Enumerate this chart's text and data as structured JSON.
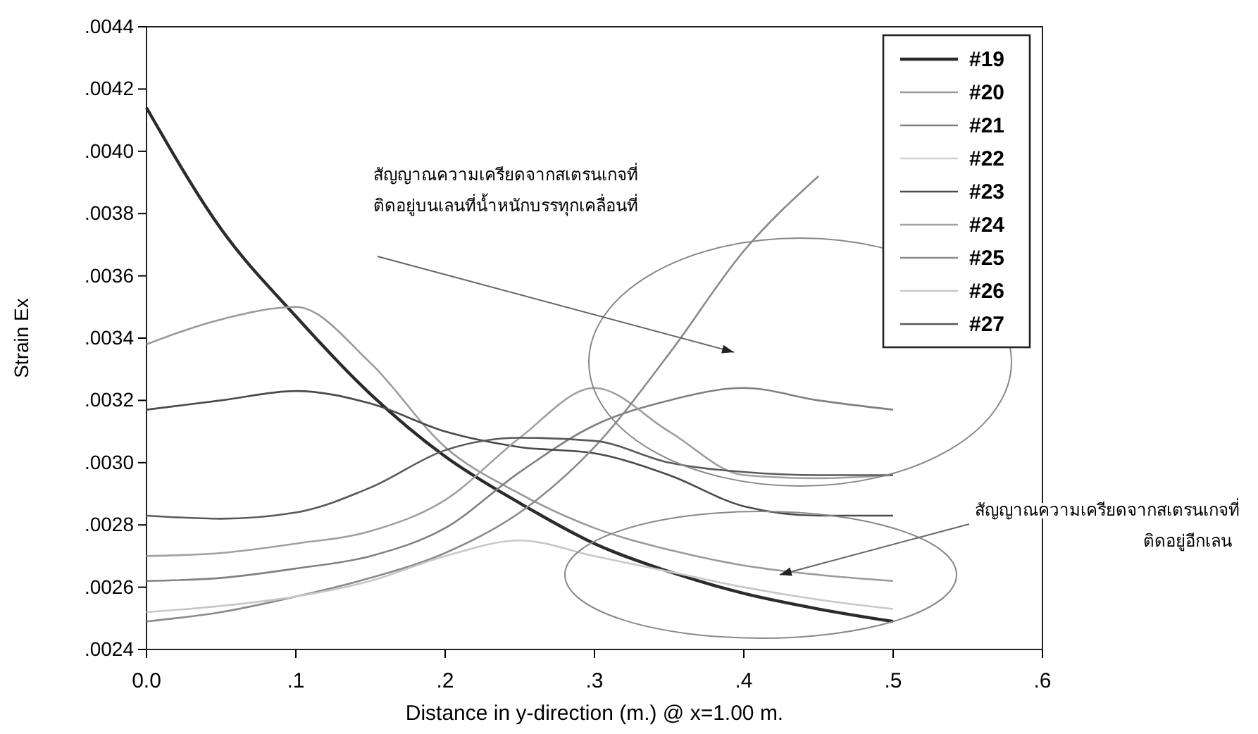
{
  "chart_data": {
    "type": "line",
    "xlabel": "Distance in y-direction (m.) @ x=1.00 m.",
    "ylabel": "Strain Ex",
    "x": [
      0,
      0.05,
      0.1,
      0.15,
      0.2,
      0.25,
      0.3,
      0.35,
      0.4,
      0.45,
      0.5
    ],
    "xlim": [
      0,
      0.6
    ],
    "xticks": [
      {
        "value": 0,
        "label": "0.0"
      },
      {
        "value": 0.1,
        "label": ".1"
      },
      {
        "value": 0.2,
        "label": ".2"
      },
      {
        "value": 0.3,
        "label": ".3"
      },
      {
        "value": 0.4,
        "label": ".4"
      },
      {
        "value": 0.5,
        "label": ".5"
      },
      {
        "value": 0.6,
        "label": ".6"
      }
    ],
    "ylim": [
      0.0024,
      0.0044
    ],
    "yticks": [
      {
        "value": 0.0024,
        "label": ".0024"
      },
      {
        "value": 0.0026,
        "label": ".0026"
      },
      {
        "value": 0.0028,
        "label": ".0028"
      },
      {
        "value": 0.003,
        "label": ".0030"
      },
      {
        "value": 0.0032,
        "label": ".0032"
      },
      {
        "value": 0.0034,
        "label": ".0034"
      },
      {
        "value": 0.0036,
        "label": ".0036"
      },
      {
        "value": 0.0038,
        "label": ".0038"
      },
      {
        "value": 0.004,
        "label": ".0040"
      },
      {
        "value": 0.0042,
        "label": ".0042"
      },
      {
        "value": 0.0044,
        "label": ".0044"
      }
    ],
    "grid": false,
    "legend": "top right",
    "marker": "none",
    "line_style": "solid",
    "series": [
      {
        "name": "#19",
        "color": "#2b2b2b",
        "values": [
          0.00414,
          0.00375,
          0.00347,
          0.00322,
          0.00302,
          0.00287,
          0.00274,
          0.00265,
          0.00258,
          0.00253,
          0.00249
        ]
      },
      {
        "name": "#20",
        "color": "#9a9a9a",
        "values": [
          0.00338,
          0.00346,
          0.0035,
          0.00332,
          0.00305,
          0.0029,
          0.00279,
          0.00272,
          0.00267,
          0.00264,
          0.00262
        ]
      },
      {
        "name": "#21",
        "color": "#808080",
        "values": [
          0.00262,
          0.00263,
          0.00266,
          0.0027,
          0.00279,
          0.00297,
          0.00312,
          0.0032,
          0.00324,
          0.0032,
          0.00317
        ]
      },
      {
        "name": "#22",
        "color": "#d0d0d0",
        "values": [
          null,
          null,
          null,
          null,
          null,
          null,
          null,
          null,
          null,
          null,
          null
        ]
      },
      {
        "name": "#23",
        "color": "#4a4a4a",
        "values": [
          0.00317,
          0.0032,
          0.00323,
          0.00319,
          0.0031,
          0.00305,
          0.00303,
          0.00296,
          0.00286,
          0.00283,
          0.00283
        ]
      },
      {
        "name": "#24",
        "color": "#a0a0a0",
        "values": [
          0.0027,
          0.00271,
          0.00274,
          0.00278,
          0.00288,
          0.00308,
          0.00324,
          0.0031,
          0.00296,
          0.00295,
          0.00296
        ]
      },
      {
        "name": "#25",
        "color": "#8a8a8a",
        "values": [
          0.00249,
          0.00252,
          0.00257,
          0.00263,
          0.00271,
          0.00284,
          0.00305,
          0.00335,
          0.00368,
          0.00392,
          null
        ]
      },
      {
        "name": "#26",
        "color": "#c8c8c8",
        "values": [
          0.00252,
          0.00254,
          0.00257,
          0.00262,
          0.0027,
          0.00275,
          0.0027,
          0.00265,
          0.0026,
          0.00256,
          0.00253
        ]
      },
      {
        "name": "#27",
        "color": "#5a5a5a",
        "values": [
          0.00283,
          0.00282,
          0.00284,
          0.00292,
          0.00304,
          0.00308,
          0.00307,
          0.003,
          0.00297,
          0.00296,
          0.00296
        ]
      }
    ],
    "annotations": [
      "สัญญาณความเครียดจากสเตรนเกจที่\nติดอยู่บนเลนที่น้ำหนักบรรทุกเคลื่อนที่",
      {
        "text": "สัญญาณความเครียดจากสเตรนเกจที่\nติดอยู่อีกเลน",
        "x": 0.424,
        "y": 0.00264
      }
    ]
  }
}
